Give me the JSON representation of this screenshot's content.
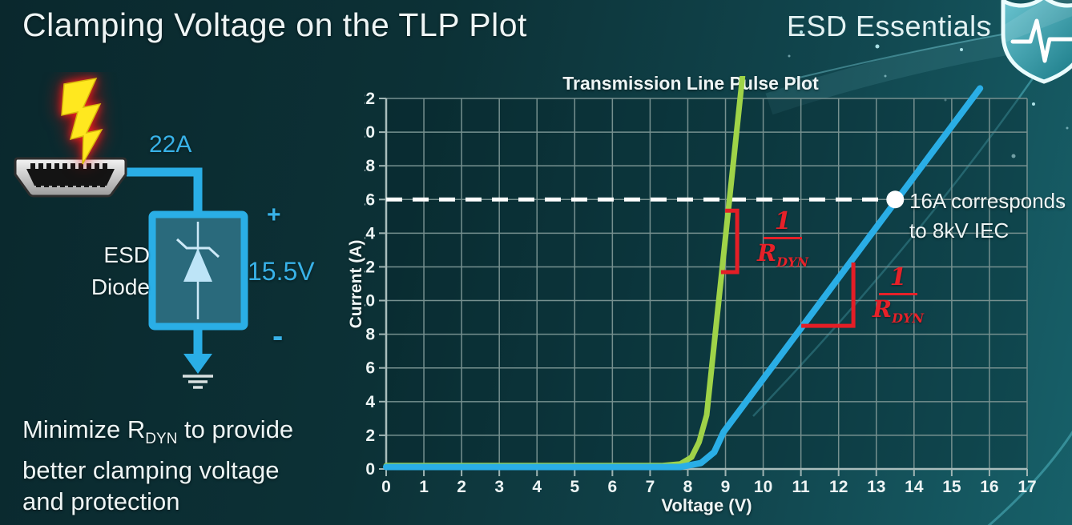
{
  "slide": {
    "title": "Clamping Voltage on the TLP Plot"
  },
  "brand": {
    "name": "ESD Essentials",
    "logo": "shield-pulse-icon"
  },
  "colors": {
    "accent_blue": "#2aaee6",
    "label_blue": "#38b2e8",
    "curve_green": "#9fd348",
    "curve_blue": "#2aaee6",
    "annotation_red": "#e41e26",
    "bolt_yellow": "#ffe81f"
  },
  "diagram": {
    "surge_current": "22A",
    "device_name_line1": "ESD",
    "device_name_line2": "Diode",
    "polarity_plus": "+",
    "polarity_minus": "-",
    "clamping_voltage": "15.5V"
  },
  "caption": {
    "pre": "Minimize R",
    "sub": "DYN",
    "post": " to provide",
    "line2": "better clamping voltage",
    "line3": "and protection"
  },
  "rdyn_fraction": {
    "numerator": "1",
    "denominator_base": "R",
    "denominator_sub": "DYN"
  },
  "chart_data": {
    "type": "line",
    "title": "Transmission Line Pulse Plot",
    "xlabel": "Voltage (V)",
    "ylabel": "Current (A)",
    "xlim": [
      0,
      17
    ],
    "ylim": [
      0,
      22
    ],
    "xtick_step": 1,
    "ytick_step": 2,
    "grid": true,
    "series": [
      {
        "name": "esd-diode-low-rdyn",
        "color": "#9fd348",
        "width": 7,
        "points": [
          [
            0,
            0.2
          ],
          [
            7.3,
            0.2
          ],
          [
            7.8,
            0.3
          ],
          [
            8.1,
            0.7
          ],
          [
            8.3,
            1.6
          ],
          [
            8.5,
            3.2
          ],
          [
            9.45,
            23.3
          ]
        ]
      },
      {
        "name": "esd-diode-high-rdyn",
        "color": "#2aaee6",
        "width": 8,
        "points": [
          [
            0,
            0.12
          ],
          [
            7.8,
            0.12
          ],
          [
            8.35,
            0.35
          ],
          [
            8.7,
            1.0
          ],
          [
            8.95,
            2.2
          ],
          [
            15.75,
            22.6
          ]
        ]
      }
    ],
    "reference_line": {
      "y": 16,
      "color": "#ffffff",
      "dash": "20 13",
      "width": 5,
      "x_end": 13.5
    },
    "marker": {
      "x": 13.5,
      "y": 16,
      "radius": 11,
      "color": "#ffffff",
      "label_line1": "16A corresponds",
      "label_line2": "to 8kV IEC"
    },
    "slope_mark_color": "#e41e26",
    "slope_marks": [
      {
        "name": "rdyn-slope-green",
        "points": [
          [
            8.99,
            15.34
          ],
          [
            9.31,
            15.34
          ],
          [
            9.31,
            11.69
          ],
          [
            8.88,
            11.69
          ]
        ]
      },
      {
        "name": "rdyn-slope-blue",
        "points": [
          [
            12.39,
            12.26
          ],
          [
            12.39,
            8.5
          ],
          [
            11.01,
            8.5
          ]
        ]
      }
    ]
  }
}
